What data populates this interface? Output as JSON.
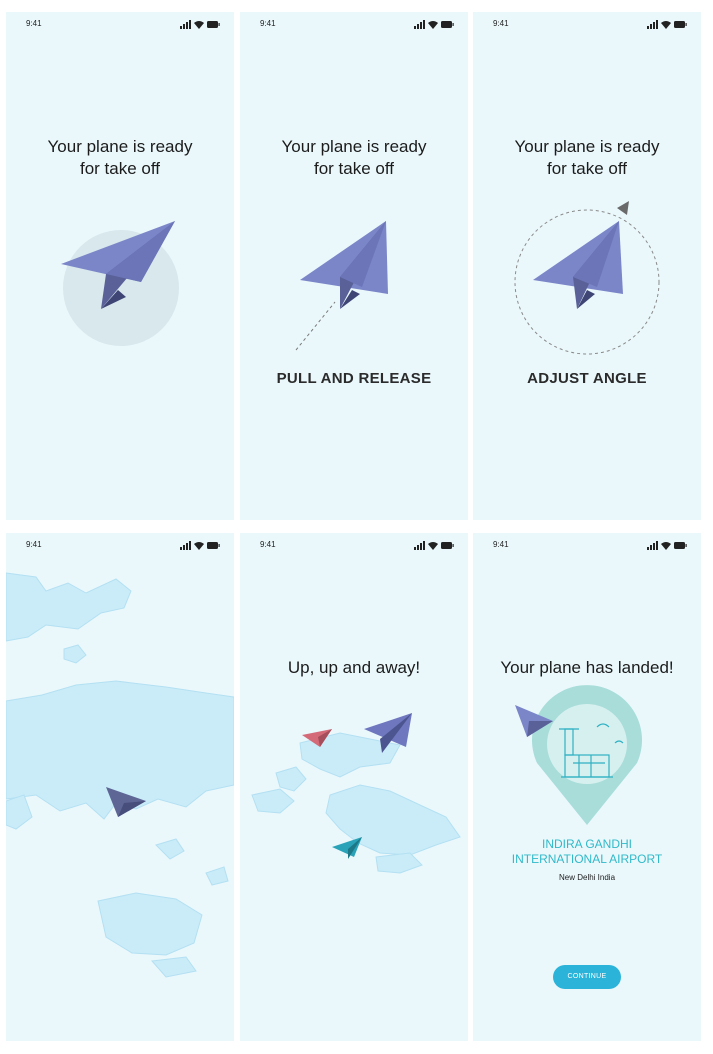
{
  "status_bar": {
    "time": "9:41"
  },
  "screens": [
    {
      "headline": "Your plane is ready\nfor take off",
      "instruction": ""
    },
    {
      "headline": "Your plane is ready\nfor take off",
      "instruction": "PULL AND RELEASE"
    },
    {
      "headline": "Your plane is ready\nfor take off",
      "instruction": "ADJUST ANGLE"
    },
    {
      "headline": "",
      "instruction": ""
    },
    {
      "headline": "Up, up and away!",
      "instruction": ""
    },
    {
      "headline": "Your plane has landed!",
      "airport_name": "INDIRA GANDHI\nINTERNATIONAL AIRPORT",
      "city": "New Delhi India",
      "button": "CONTINUE"
    }
  ],
  "colors": {
    "background": "#eaf8fc",
    "plane": "#7b86c9",
    "accent": "#2bb3d9",
    "map": "#c9ecf8",
    "pin": "#a8ddd9"
  }
}
